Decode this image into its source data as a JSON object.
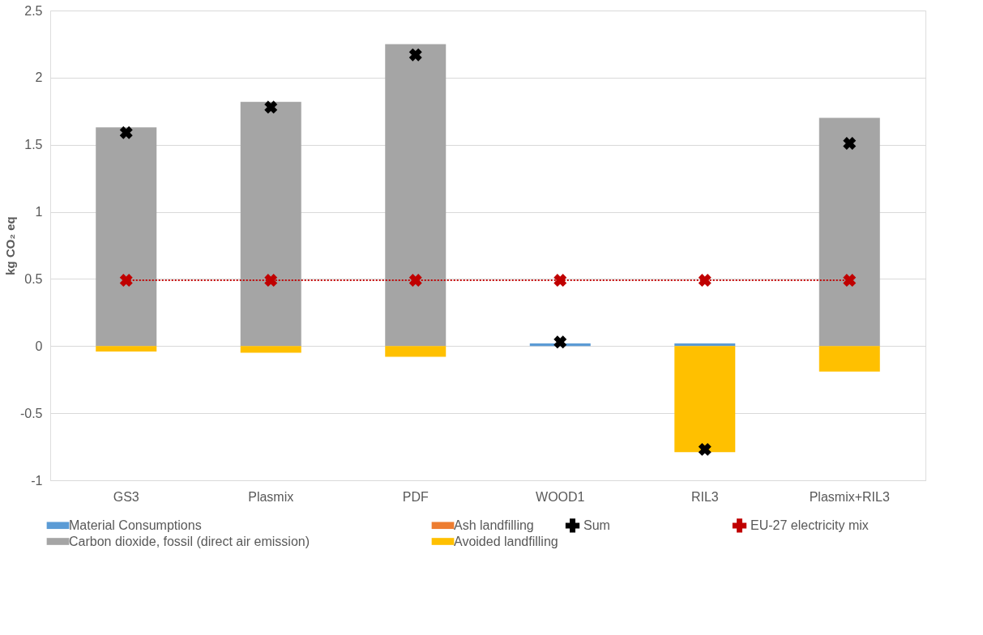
{
  "chart_data": {
    "type": "bar",
    "stacked": true,
    "ylabel": "kg CO₂ eq",
    "categories": [
      "GS3",
      "Plasmix",
      "PDF",
      "WOOD1",
      "RIL3",
      "Plasmix+RIL3"
    ],
    "series": [
      {
        "name": "Material Consumptions",
        "color": "#5b9bd5",
        "values": [
          0,
          0,
          0,
          0.02,
          0.02,
          0
        ]
      },
      {
        "name": "Ash landfilling",
        "color": "#ed7d31",
        "values": [
          0,
          0,
          0,
          0,
          0,
          0
        ]
      },
      {
        "name": "Carbon dioxide, fossil (direct air emission)",
        "color": "#a5a5a5",
        "values": [
          1.63,
          1.82,
          2.25,
          0,
          0,
          1.7
        ]
      },
      {
        "name": "Avoided landfilling",
        "color": "#ffc000",
        "values": [
          -0.04,
          -0.05,
          -0.08,
          0,
          -0.79,
          -0.19
        ]
      },
      {
        "name": "Sum",
        "type": "scatter",
        "color": "#000000",
        "marker": "cross",
        "values": [
          1.59,
          1.78,
          2.17,
          0.03,
          -0.77,
          1.51
        ]
      },
      {
        "name": "EU-27 electricity mix",
        "type": "line",
        "color": "#c00000",
        "marker": "cross",
        "line_style": "dotted",
        "values": [
          0.49,
          0.49,
          0.49,
          0.49,
          0.49,
          0.49
        ]
      }
    ],
    "ylim": [
      -1,
      2.5
    ],
    "yticks": [
      -1,
      -0.5,
      0,
      0.5,
      1,
      1.5,
      2,
      2.5
    ],
    "grid": "y",
    "legend": "bottom"
  }
}
